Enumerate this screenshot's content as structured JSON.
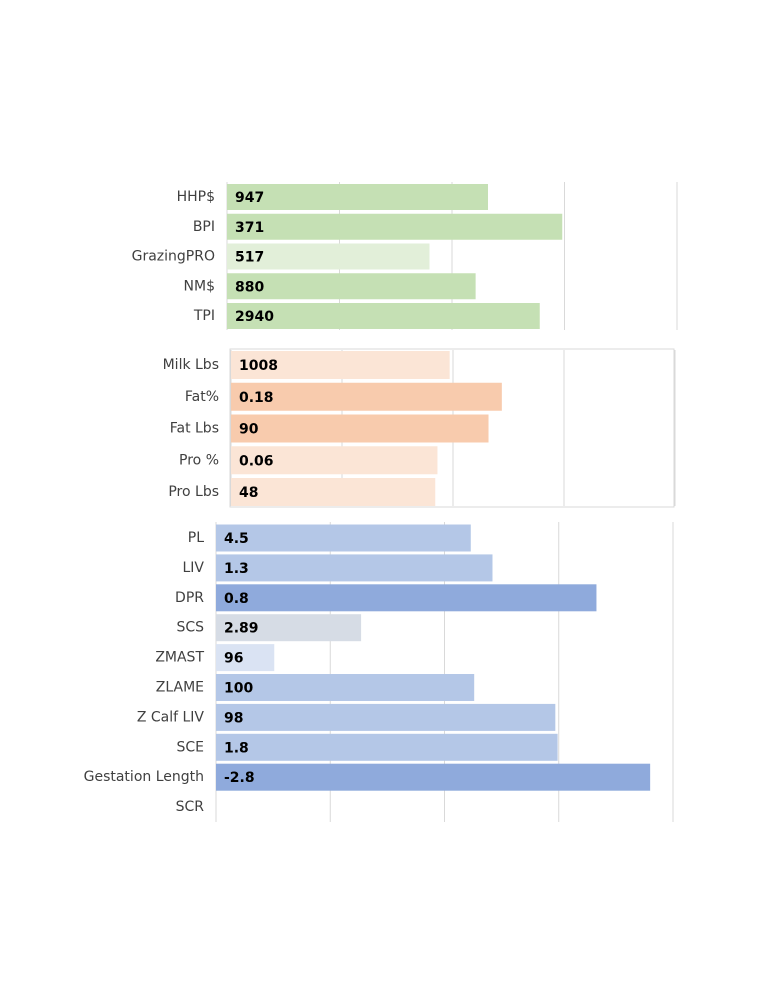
{
  "chart_data": [
    {
      "type": "bar",
      "orientation": "horizontal",
      "categories": [
        "HHP$",
        "BPI",
        "GrazingPRO",
        "NM$",
        "TPI"
      ],
      "values": [
        2.32,
        2.98,
        1.8,
        2.21,
        2.78
      ],
      "labels": [
        "947",
        "371",
        "517",
        "880",
        "2940"
      ],
      "colors": [
        "#c5e0b4",
        "#c5e0b4",
        "#e2efd9",
        "#c5e0b4",
        "#c5e0b4"
      ],
      "xlim": [
        0,
        4
      ],
      "xticks": [
        0,
        1,
        2,
        3,
        4
      ],
      "grid": true
    },
    {
      "type": "bar",
      "orientation": "horizontal",
      "categories": [
        "Milk Lbs",
        "Fat%",
        "Fat Lbs",
        "Pro %",
        "Pro Lbs"
      ],
      "values": [
        1.97,
        2.44,
        2.32,
        1.86,
        1.84
      ],
      "labels": [
        "1008",
        "0.18",
        "90",
        "0.06",
        "48"
      ],
      "colors": [
        "#fbe5d6",
        "#f8cbad",
        "#f8cbad",
        "#fbe5d6",
        "#fbe5d6"
      ],
      "xlim": [
        0,
        4
      ],
      "xticks": [
        0,
        1,
        2,
        3,
        4
      ],
      "grid": true
    },
    {
      "type": "bar",
      "orientation": "horizontal",
      "categories": [
        "PL",
        "LIV",
        "DPR",
        "SCS",
        "ZMAST",
        "ZLAME",
        "Z Calf LIV",
        "SCE",
        "Gestation Length",
        "SCR"
      ],
      "values": [
        2.23,
        2.42,
        3.33,
        1.27,
        0.51,
        2.26,
        2.97,
        2.99,
        3.8,
        null
      ],
      "labels": [
        "4.5",
        "1.3",
        "0.8",
        "2.89",
        "96",
        "100",
        "98",
        "1.8",
        "-2.8",
        null
      ],
      "colors": [
        "#b4c7e7",
        "#b4c7e7",
        "#8faadc",
        "#d6dce5",
        "#dae3f3",
        "#b4c7e7",
        "#b4c7e7",
        "#b4c7e7",
        "#8faadc",
        "#b4c7e7"
      ],
      "xlim": [
        0,
        4
      ],
      "xticks": [
        0,
        1,
        2,
        3,
        4
      ],
      "grid": true
    }
  ]
}
